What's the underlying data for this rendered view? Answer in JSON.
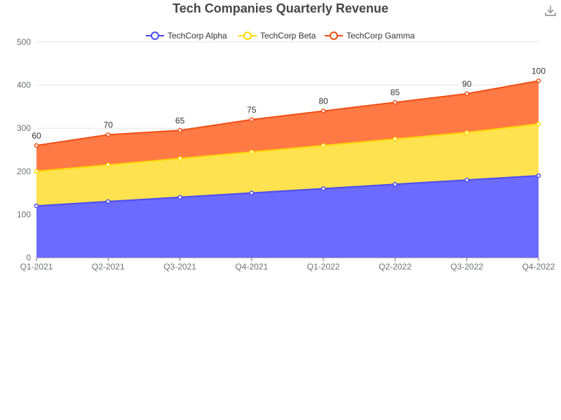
{
  "chart_data": {
    "type": "area",
    "stacked": true,
    "title": "Tech Companies Quarterly Revenue",
    "categories": [
      "Q1-2021",
      "Q2-2021",
      "Q3-2021",
      "Q4-2021",
      "Q1-2022",
      "Q2-2022",
      "Q3-2022",
      "Q4-2022"
    ],
    "ylim": [
      0,
      500
    ],
    "yticks": [
      0,
      100,
      200,
      300,
      400,
      500
    ],
    "grid": true,
    "legend_position": "top-center",
    "series": [
      {
        "name": "TechCorp Alpha",
        "color": "#4b4bf0",
        "fill": "#6b6bff",
        "values": [
          120,
          130,
          140,
          150,
          160,
          170,
          180,
          190
        ]
      },
      {
        "name": "TechCorp Beta",
        "color": "#ffd800",
        "fill": "#ffe24f",
        "values": [
          80,
          85,
          90,
          95,
          100,
          105,
          110,
          120
        ]
      },
      {
        "name": "TechCorp Gamma",
        "color": "#f04e14",
        "fill": "#ff7a45",
        "values": [
          60,
          70,
          65,
          75,
          80,
          85,
          90,
          100
        ]
      }
    ],
    "data_labels_series": "TechCorp Gamma"
  },
  "toolbar": {
    "download_icon": "download-icon"
  }
}
